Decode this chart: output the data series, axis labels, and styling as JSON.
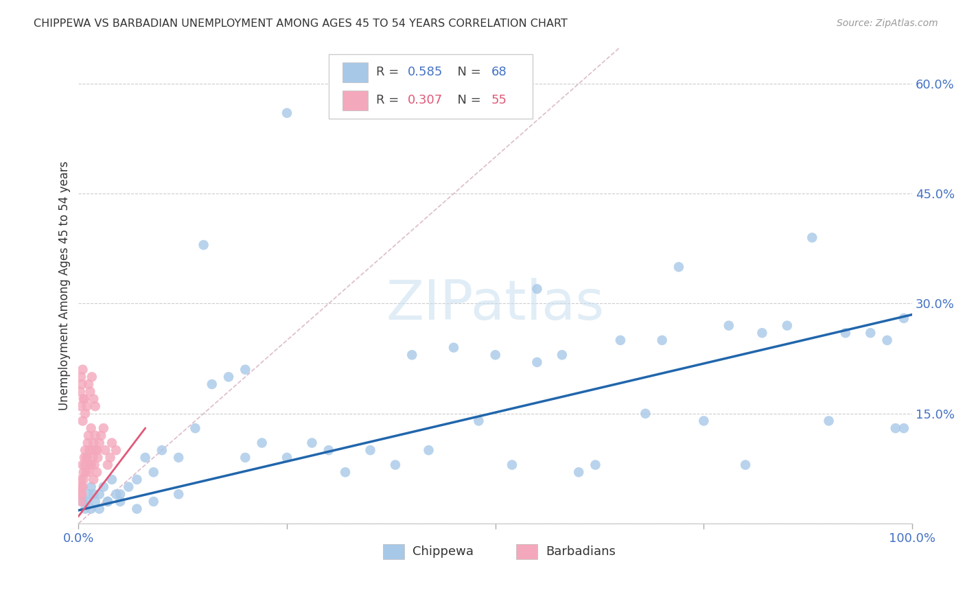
{
  "title": "CHIPPEWA VS BARBADIAN UNEMPLOYMENT AMONG AGES 45 TO 54 YEARS CORRELATION CHART",
  "source": "Source: ZipAtlas.com",
  "ylabel": "Unemployment Among Ages 45 to 54 years",
  "xlim": [
    0,
    1.0
  ],
  "ylim": [
    0,
    0.65
  ],
  "chippewa_R": 0.585,
  "chippewa_N": 68,
  "barbadian_R": 0.307,
  "barbadian_N": 55,
  "chippewa_color": "#a8c8e8",
  "barbadian_color": "#f4a8bc",
  "chippewa_line_color": "#2166ac",
  "barbadian_line_color": "#e05878",
  "identity_line_color": "#ddbbcc",
  "background_color": "#ffffff",
  "watermark": "ZIPatlas",
  "chip_line_x0": 0.0,
  "chip_line_y0": 0.018,
  "chip_line_x1": 1.0,
  "chip_line_y1": 0.285,
  "barb_line_x0": 0.0,
  "barb_line_y0": 0.01,
  "barb_line_x1": 0.08,
  "barb_line_y1": 0.13,
  "chippewa_x": [
    0.005,
    0.008,
    0.01,
    0.012,
    0.015,
    0.018,
    0.02,
    0.025,
    0.03,
    0.035,
    0.04,
    0.045,
    0.05,
    0.06,
    0.07,
    0.08,
    0.09,
    0.1,
    0.12,
    0.14,
    0.16,
    0.18,
    0.2,
    0.22,
    0.25,
    0.28,
    0.3,
    0.32,
    0.35,
    0.38,
    0.4,
    0.42,
    0.45,
    0.48,
    0.5,
    0.52,
    0.55,
    0.55,
    0.58,
    0.6,
    0.62,
    0.65,
    0.68,
    0.7,
    0.72,
    0.75,
    0.78,
    0.8,
    0.82,
    0.85,
    0.88,
    0.9,
    0.92,
    0.95,
    0.97,
    0.98,
    0.99,
    0.99,
    0.015,
    0.025,
    0.035,
    0.05,
    0.07,
    0.09,
    0.12,
    0.15,
    0.2,
    0.25
  ],
  "chippewa_y": [
    0.03,
    0.02,
    0.03,
    0.04,
    0.05,
    0.04,
    0.03,
    0.04,
    0.05,
    0.03,
    0.06,
    0.04,
    0.04,
    0.05,
    0.06,
    0.09,
    0.07,
    0.1,
    0.09,
    0.13,
    0.19,
    0.2,
    0.09,
    0.11,
    0.09,
    0.11,
    0.1,
    0.07,
    0.1,
    0.08,
    0.23,
    0.1,
    0.24,
    0.14,
    0.23,
    0.08,
    0.32,
    0.22,
    0.23,
    0.07,
    0.08,
    0.25,
    0.15,
    0.25,
    0.35,
    0.14,
    0.27,
    0.08,
    0.26,
    0.27,
    0.39,
    0.14,
    0.26,
    0.26,
    0.25,
    0.13,
    0.28,
    0.13,
    0.02,
    0.02,
    0.03,
    0.03,
    0.02,
    0.03,
    0.04,
    0.38,
    0.21,
    0.56
  ],
  "barbadian_x": [
    0.002,
    0.003,
    0.004,
    0.005,
    0.006,
    0.007,
    0.008,
    0.009,
    0.01,
    0.011,
    0.012,
    0.013,
    0.014,
    0.015,
    0.016,
    0.017,
    0.018,
    0.019,
    0.02,
    0.021,
    0.022,
    0.023,
    0.025,
    0.027,
    0.03,
    0.032,
    0.035,
    0.038,
    0.04,
    0.045,
    0.003,
    0.005,
    0.007,
    0.008,
    0.01,
    0.012,
    0.014,
    0.016,
    0.018,
    0.02,
    0.003,
    0.004,
    0.005,
    0.006,
    0.008,
    0.01,
    0.012,
    0.015,
    0.018,
    0.022,
    0.002,
    0.003,
    0.004,
    0.005,
    0.006
  ],
  "barbadian_y": [
    0.04,
    0.06,
    0.05,
    0.08,
    0.07,
    0.09,
    0.1,
    0.07,
    0.09,
    0.11,
    0.12,
    0.1,
    0.08,
    0.13,
    0.1,
    0.09,
    0.11,
    0.08,
    0.12,
    0.1,
    0.07,
    0.09,
    0.11,
    0.12,
    0.13,
    0.1,
    0.08,
    0.09,
    0.11,
    0.1,
    0.16,
    0.14,
    0.17,
    0.15,
    0.16,
    0.19,
    0.18,
    0.2,
    0.17,
    0.16,
    0.03,
    0.04,
    0.05,
    0.06,
    0.08,
    0.09,
    0.07,
    0.08,
    0.06,
    0.1,
    0.18,
    0.2,
    0.19,
    0.21,
    0.17
  ]
}
